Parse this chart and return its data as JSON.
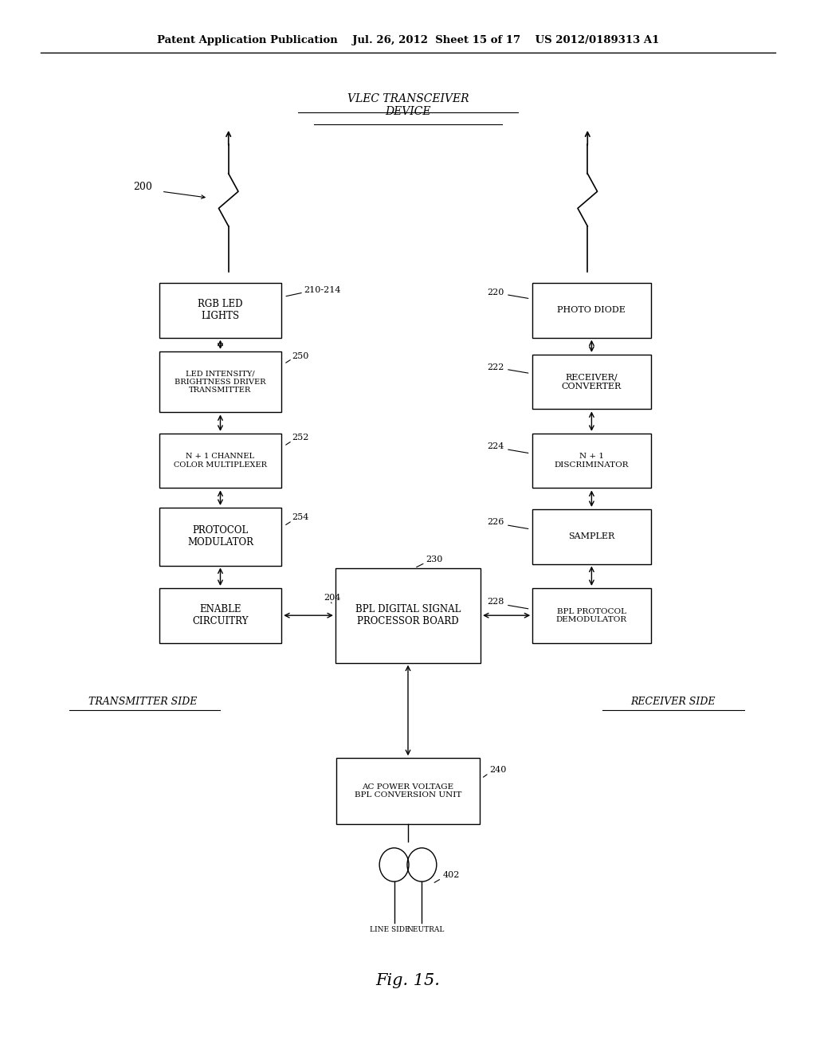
{
  "bg_color": "#ffffff",
  "header_text": "Patent Application Publication    Jul. 26, 2012  Sheet 15 of 17    US 2012/0189313 A1",
  "fig_label": "Fig. 15.",
  "transmitter_side_label": "TRANSMITTER SIDE",
  "receiver_side_label": "RECEIVER SIDE",
  "ref_200": "200",
  "ref_210_214": "210-214",
  "ref_220": "220",
  "ref_222": "222",
  "ref_224": "224",
  "ref_226": "226",
  "ref_228": "228",
  "ref_230": "230",
  "ref_240": "240",
  "ref_250": "250",
  "ref_252": "252",
  "ref_254": "254",
  "ref_204": "204",
  "ref_402": "402",
  "vlec_label": "VLEC TRANSCEIVER\nDEVICE"
}
